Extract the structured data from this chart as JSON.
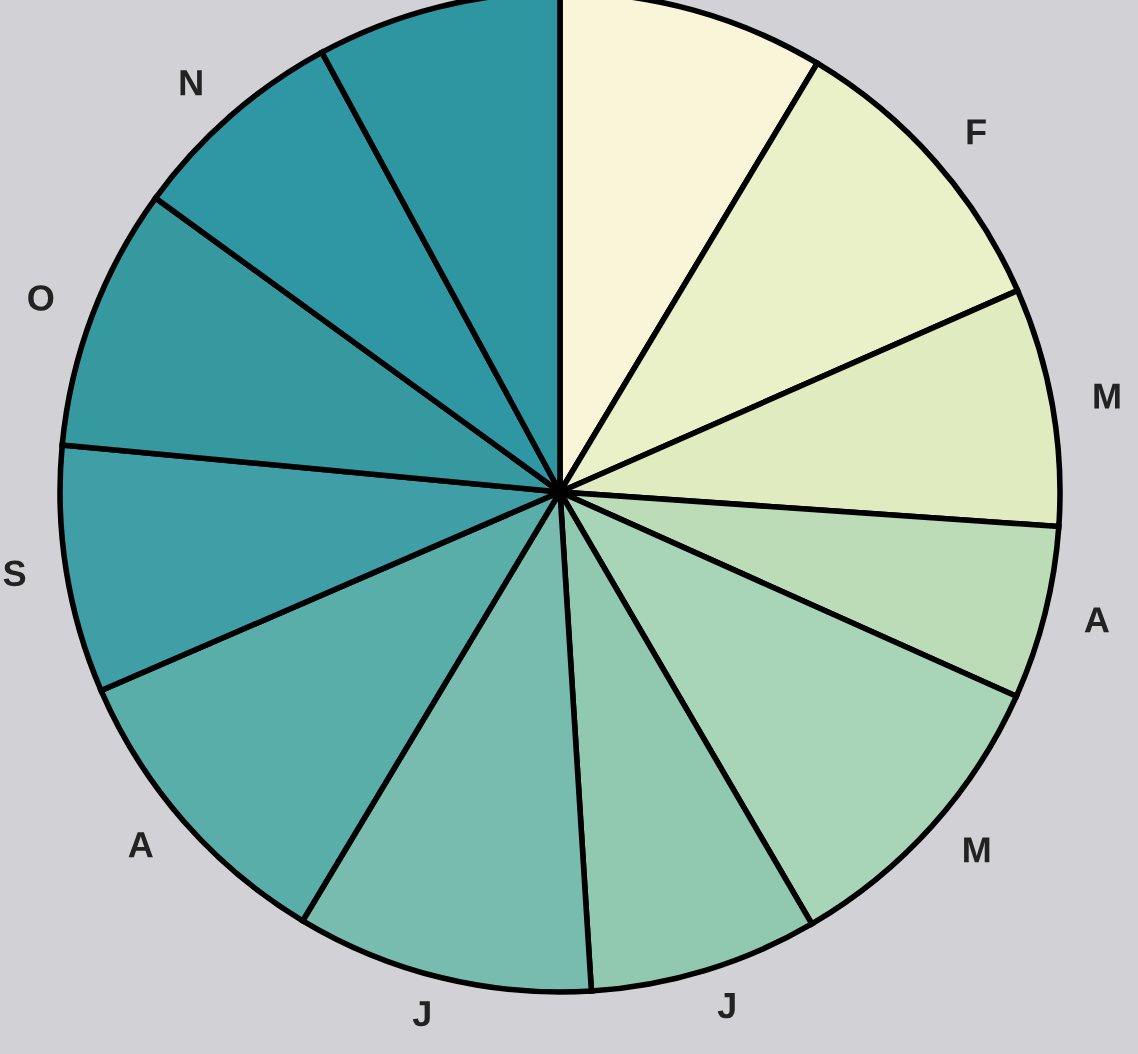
{
  "chart_data": {
    "type": "pie",
    "categories": [
      null,
      "F",
      "M",
      "A",
      "M",
      "J",
      "J",
      "A",
      "S",
      "O",
      "N",
      null
    ],
    "values": [
      8.6,
      9.8,
      7.7,
      5.6,
      9.9,
      7.4,
      9.6,
      9.9,
      8.0,
      8.5,
      7.1,
      7.9
    ],
    "colors": [
      "#f8f5d8",
      "#eaf0c8",
      "#e0ebc0",
      "#bcdcb8",
      "#a8d4b8",
      "#90c8b0",
      "#78bcaf",
      "#5aaeaa",
      "#3f9ea6",
      "#35999f",
      "#2f97a3",
      "#2e96a0"
    ]
  }
}
